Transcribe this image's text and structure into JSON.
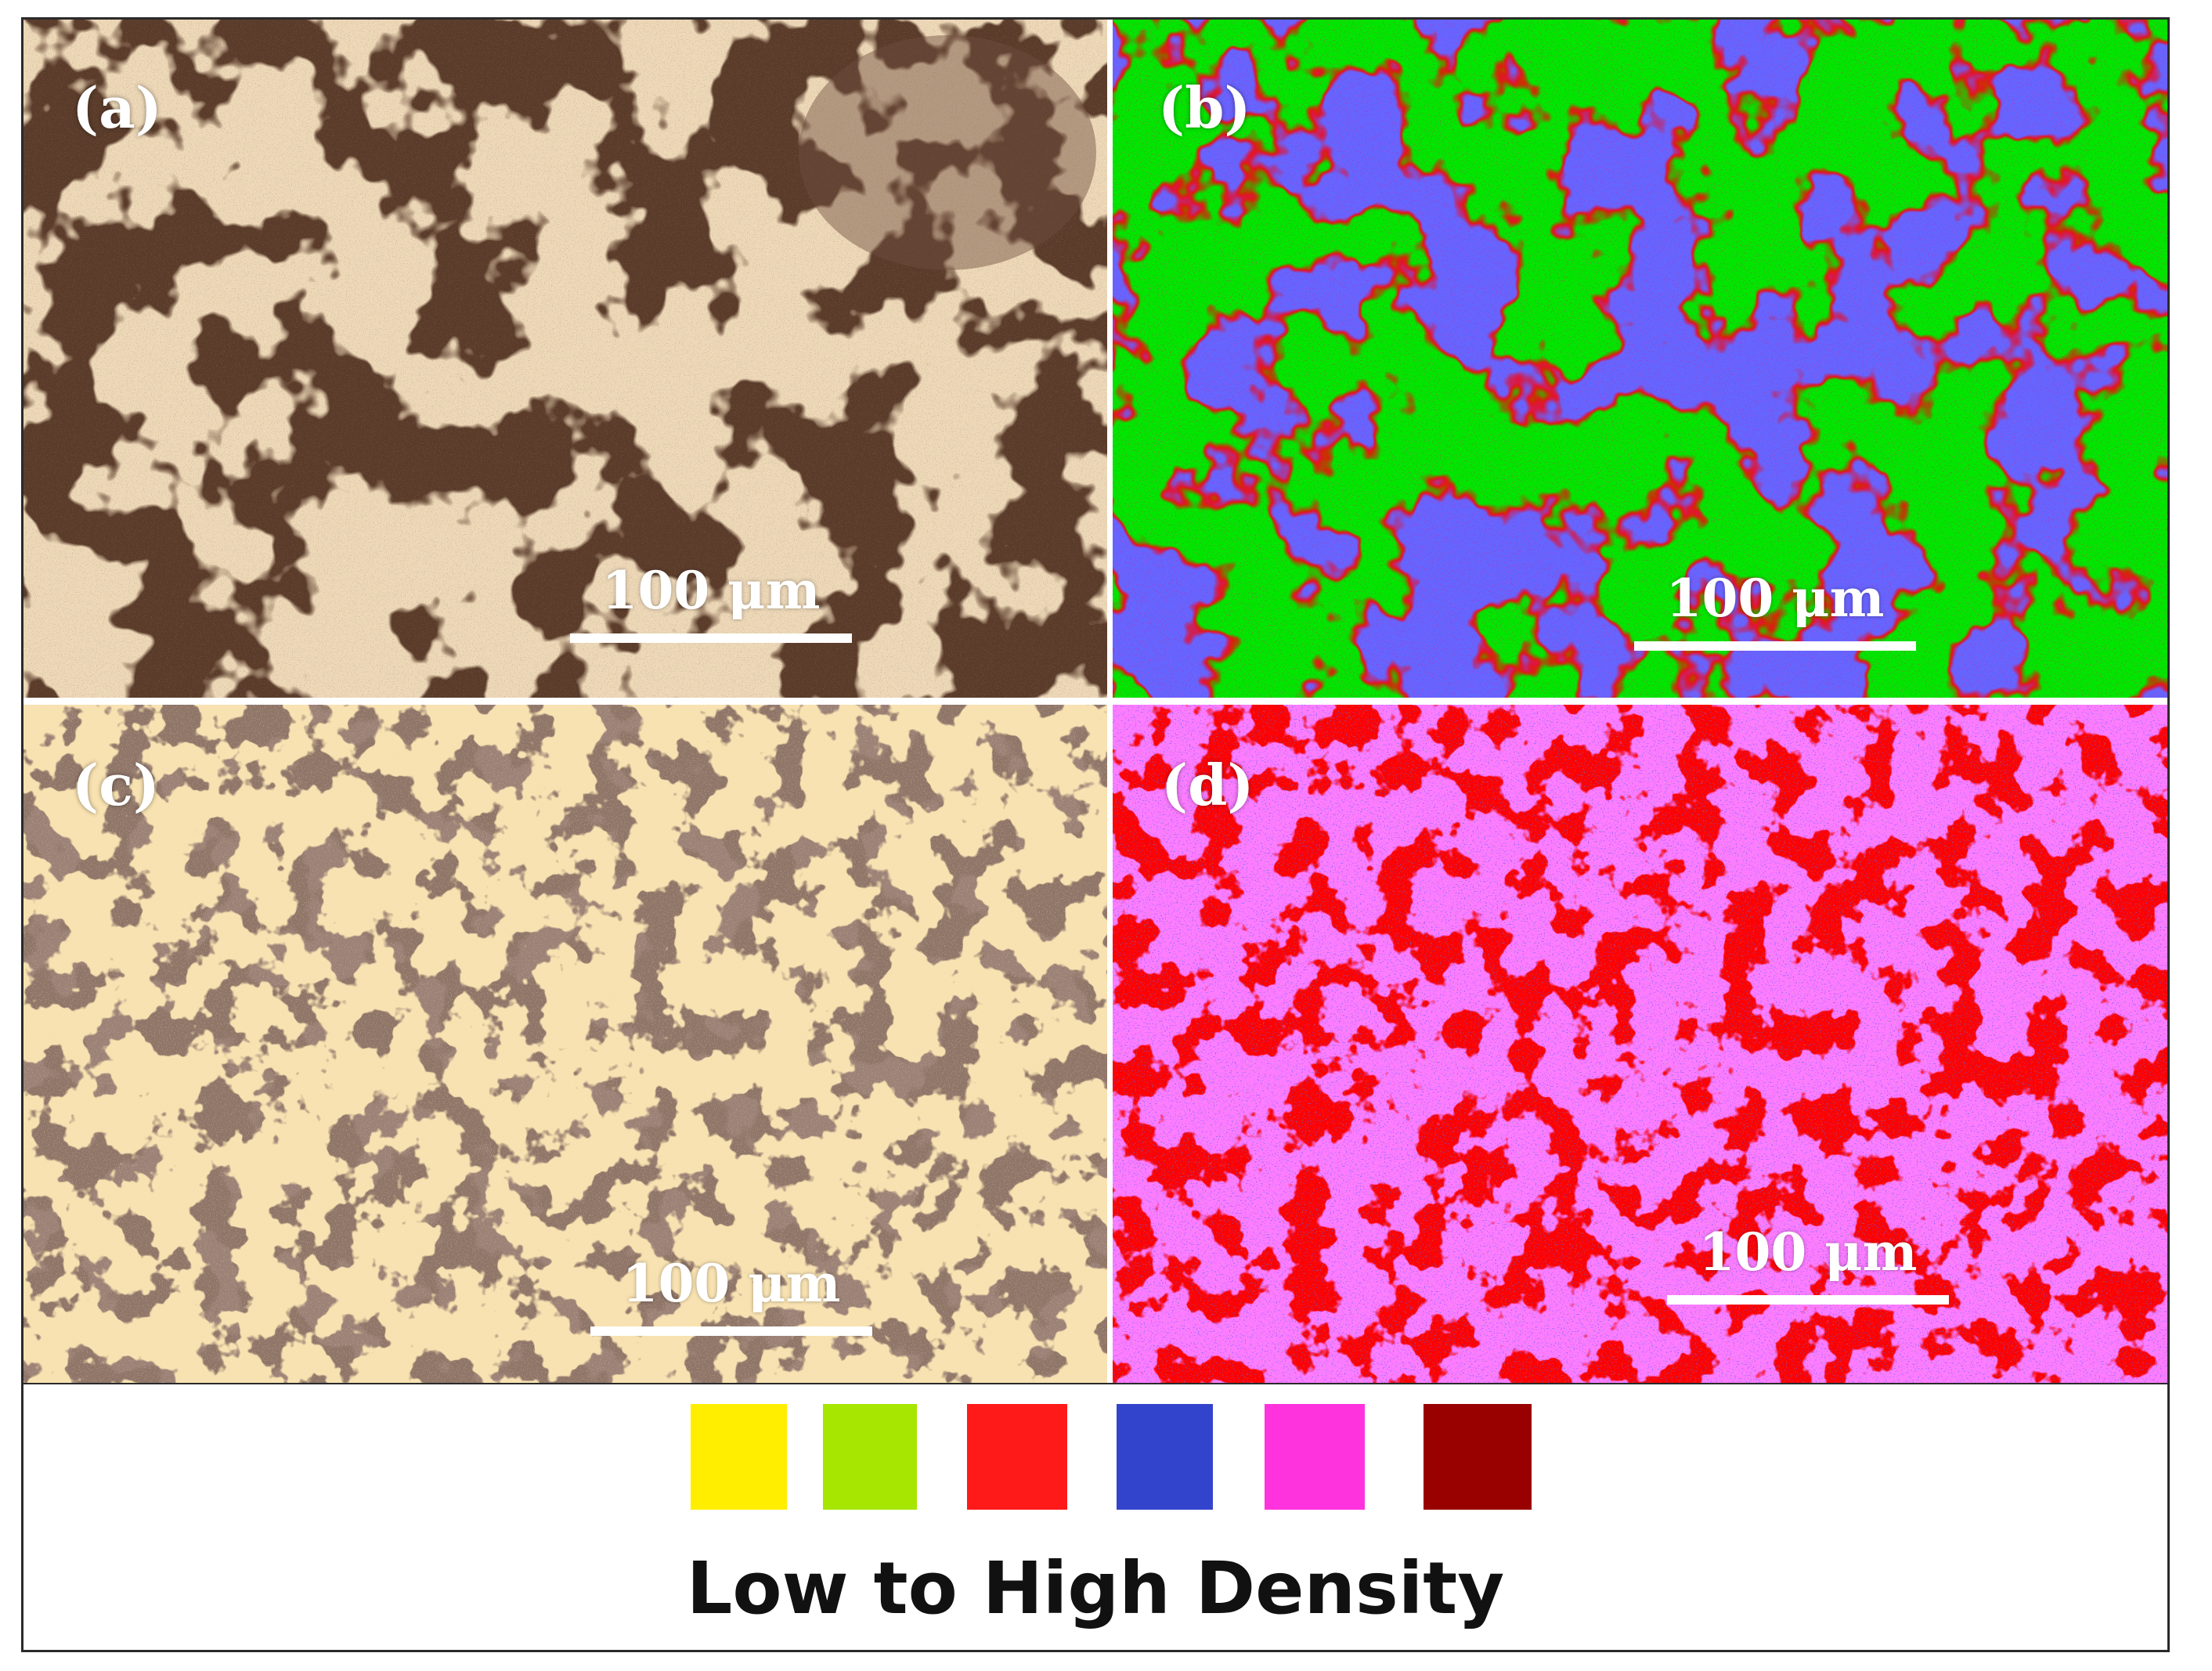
{
  "panels": {
    "a": {
      "label": "(a)",
      "scale_bar": "100 μm"
    },
    "b": {
      "label": "(b)",
      "scale_bar": "100 μm"
    },
    "c": {
      "label": "(c)",
      "scale_bar": "100 μm"
    },
    "d": {
      "label": "(d)",
      "scale_bar": "100 μm"
    }
  },
  "legend": {
    "title": "Low to High Density",
    "swatches": [
      "#ffee00",
      "#a6e600",
      "#ff1a1a",
      "#3344cc",
      "#ff33dd",
      "#990000"
    ]
  },
  "colors": {
    "panel_a_matrix": "#5a3b2a",
    "panel_a_grain": "#d9b07a",
    "panel_b_background": "#00e600",
    "panel_b_phase": "#2222ff",
    "panel_b_edge": "#ff0000",
    "panel_c_matrix": "#8e7568",
    "panel_c_grain": "#f0c070",
    "panel_d_background": "#ff0000",
    "panel_d_phase": "#ff33ff",
    "panel_d_dots": "#1a1aff"
  }
}
